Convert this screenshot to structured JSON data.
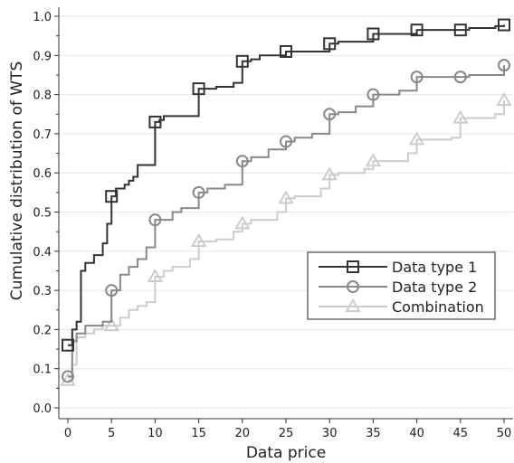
{
  "chart_data": {
    "type": "line",
    "title": "",
    "xlabel": "Data price",
    "ylabel": "Cumulative distribution of WTS",
    "xlim": [
      0,
      50
    ],
    "ylim": [
      0,
      1.0
    ],
    "x_ticks": [
      0,
      5,
      10,
      15,
      20,
      25,
      30,
      35,
      40,
      45,
      50
    ],
    "y_ticks": [
      0.0,
      0.1,
      0.2,
      0.3,
      0.4,
      0.5,
      0.6,
      0.7,
      0.8,
      0.9,
      1.0
    ],
    "y_tick_labels": [
      "0.0",
      "0.1",
      "0.2",
      "0.3",
      "0.4",
      "0.5",
      "0.6",
      "0.7",
      "0.8",
      "0.9",
      "1.0"
    ],
    "grid": "horizontal",
    "legend_position": "lower-right",
    "series": [
      {
        "name": "Data type 1",
        "color": "#333333",
        "marker": "square",
        "step_x": [
          0,
          0.5,
          1,
          1.5,
          2,
          3,
          4,
          4.5,
          5,
          5.5,
          6,
          6.5,
          7,
          7.5,
          8,
          9,
          10,
          10.5,
          11,
          15,
          16,
          17,
          18,
          19,
          20,
          21,
          22,
          25,
          26,
          30,
          31,
          35,
          36,
          40,
          41,
          45,
          46,
          49,
          50
        ],
        "step_y": [
          0.16,
          0.2,
          0.22,
          0.35,
          0.37,
          0.39,
          0.42,
          0.47,
          0.54,
          0.56,
          0.56,
          0.57,
          0.58,
          0.59,
          0.62,
          0.62,
          0.73,
          0.735,
          0.745,
          0.815,
          0.815,
          0.82,
          0.82,
          0.83,
          0.885,
          0.89,
          0.9,
          0.91,
          0.91,
          0.93,
          0.935,
          0.955,
          0.955,
          0.965,
          0.965,
          0.965,
          0.97,
          0.975,
          0.978
        ],
        "marker_x": [
          0,
          5,
          10,
          15,
          20,
          25,
          30,
          35,
          40,
          45,
          50
        ],
        "marker_y": [
          0.16,
          0.54,
          0.73,
          0.815,
          0.885,
          0.91,
          0.93,
          0.955,
          0.965,
          0.965,
          0.978
        ]
      },
      {
        "name": "Data type 2",
        "color": "#888888",
        "marker": "circle",
        "step_x": [
          0,
          0.5,
          1,
          2,
          3,
          4,
          5,
          6,
          7,
          8,
          9,
          10,
          11,
          12,
          13,
          15,
          16,
          18,
          20,
          21,
          23,
          25,
          26,
          28,
          30,
          31,
          33,
          35,
          36,
          38,
          40,
          41,
          45,
          46,
          50
        ],
        "step_y": [
          0.08,
          0.17,
          0.19,
          0.21,
          0.21,
          0.22,
          0.3,
          0.34,
          0.36,
          0.38,
          0.41,
          0.48,
          0.48,
          0.5,
          0.51,
          0.55,
          0.56,
          0.57,
          0.63,
          0.64,
          0.66,
          0.68,
          0.69,
          0.7,
          0.75,
          0.755,
          0.77,
          0.8,
          0.8,
          0.81,
          0.845,
          0.845,
          0.845,
          0.85,
          0.875
        ],
        "marker_x": [
          0,
          5,
          10,
          15,
          20,
          25,
          30,
          35,
          40,
          45,
          50
        ],
        "marker_y": [
          0.08,
          0.3,
          0.48,
          0.55,
          0.63,
          0.68,
          0.75,
          0.8,
          0.845,
          0.845,
          0.875
        ]
      },
      {
        "name": "Combination",
        "color": "#cccccc",
        "marker": "triangle",
        "step_x": [
          0,
          0.5,
          1,
          2,
          3,
          4,
          5,
          6,
          7,
          8,
          9,
          10,
          11,
          12,
          14,
          15,
          17,
          19,
          20,
          21,
          24,
          25,
          26,
          29,
          30,
          31,
          34,
          35,
          36,
          39,
          40,
          41,
          44,
          45,
          46,
          49,
          50
        ],
        "step_y": [
          0.07,
          0.11,
          0.18,
          0.19,
          0.2,
          0.21,
          0.21,
          0.23,
          0.25,
          0.26,
          0.27,
          0.335,
          0.35,
          0.36,
          0.38,
          0.425,
          0.43,
          0.45,
          0.47,
          0.48,
          0.5,
          0.535,
          0.54,
          0.56,
          0.595,
          0.6,
          0.61,
          0.63,
          0.63,
          0.65,
          0.685,
          0.685,
          0.69,
          0.74,
          0.74,
          0.75,
          0.785
        ],
        "marker_x": [
          0,
          5,
          10,
          15,
          20,
          25,
          30,
          35,
          40,
          45,
          50
        ],
        "marker_y": [
          0.07,
          0.21,
          0.335,
          0.425,
          0.47,
          0.535,
          0.595,
          0.63,
          0.685,
          0.74,
          0.785
        ]
      }
    ]
  }
}
